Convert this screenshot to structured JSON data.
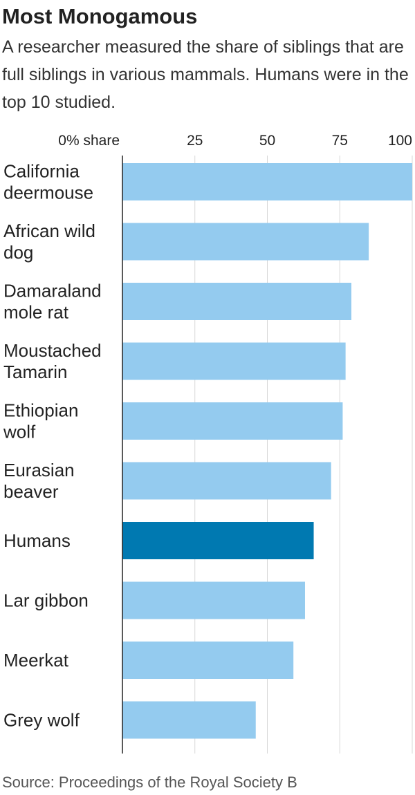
{
  "title": "Most Monogamous",
  "subtitle": "A researcher measured the share of siblings that are full siblings in various mammals. Humans were in the top 10 studied.",
  "source": "Source: Proceedings of the Royal Society B",
  "colors": {
    "bar": "#94cbef",
    "highlight": "#0079b1",
    "grid": "#d7d7d7",
    "axis": "#222222",
    "text": "#222222"
  },
  "chart_data": {
    "type": "bar",
    "orientation": "horizontal",
    "xlim": [
      0,
      100
    ],
    "ticks": [
      0,
      25,
      50,
      75,
      100
    ],
    "tick_labels": [
      "0% share",
      "25",
      "50",
      "75",
      "100"
    ],
    "grid": true,
    "highlight_category": "Humans",
    "categories": [
      [
        "California",
        "deermouse"
      ],
      [
        "African wild",
        "dog"
      ],
      [
        "Damaraland",
        "mole rat"
      ],
      [
        "Moustached",
        "Tamarin"
      ],
      [
        "Ethiopian",
        "wolf"
      ],
      [
        "Eurasian",
        "beaver"
      ],
      [
        "Humans"
      ],
      [
        "Lar gibbon"
      ],
      [
        "Meerkat"
      ],
      [
        "Grey wolf"
      ]
    ],
    "values": [
      100,
      85,
      79,
      77,
      76,
      72,
      66,
      63,
      59,
      46
    ]
  }
}
